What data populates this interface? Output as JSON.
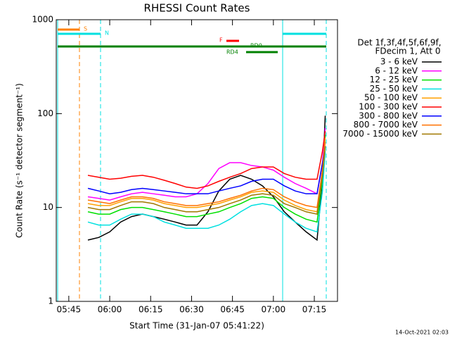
{
  "chart_data": {
    "type": "line",
    "title": "RHESSI Count Rates",
    "xlabel": "Start Time (31-Jan-07 05:41:22)",
    "ylabel": "Count Rate (s⁻¹ detector segment⁻¹)",
    "legend_title": [
      "Det 1f,3f,4f,5f,6f,9f,",
      "FDecim 1, Att 0"
    ],
    "footer": "14-Oct-2021 02:03",
    "annotations": [
      "S",
      "N",
      "F",
      "RD0",
      "RD4"
    ],
    "log_y": true,
    "xlim": [
      340.4,
      443.5
    ],
    "xticks": [
      {
        "value": 345,
        "label": "05:45"
      },
      {
        "value": 360,
        "label": "06:00"
      },
      {
        "value": 375,
        "label": "06:15"
      },
      {
        "value": 390,
        "label": "06:30"
      },
      {
        "value": 405,
        "label": "06:45"
      },
      {
        "value": 420,
        "label": "07:00"
      },
      {
        "value": 435,
        "label": "07:15"
      }
    ],
    "ylim": [
      1,
      1000
    ],
    "yticks": [
      1,
      10,
      100,
      1000
    ],
    "x": [
      352,
      356,
      360,
      364,
      368,
      372,
      376,
      380,
      384,
      388,
      392,
      396,
      400,
      404,
      408,
      412,
      416,
      420,
      424,
      428,
      432,
      436,
      438,
      439
    ],
    "series": [
      {
        "name": "3 - 6 keV",
        "color": "#000000",
        "values": [
          4.5,
          4.8,
          5.5,
          7,
          8,
          8.5,
          8,
          7.5,
          7,
          6.5,
          6.5,
          9,
          15,
          20,
          22,
          20,
          17,
          13,
          9,
          7,
          5.5,
          4.5,
          20,
          95
        ]
      },
      {
        "name": "6 - 12 keV",
        "color": "#ff00ff",
        "values": [
          13,
          12.5,
          12,
          13,
          14,
          14.5,
          14,
          13.5,
          13,
          13,
          14,
          18,
          26,
          30,
          30,
          28,
          27,
          25,
          21,
          18,
          16,
          14,
          30,
          70
        ]
      },
      {
        "name": "12 - 25 keV",
        "color": "#00e000",
        "values": [
          9,
          8.5,
          8.5,
          9.5,
          10,
          10,
          9.5,
          9,
          8.5,
          8,
          8,
          8.5,
          9,
          10,
          11,
          12.5,
          13,
          12.5,
          10,
          8.5,
          7.5,
          7,
          20,
          60
        ]
      },
      {
        "name": "25 - 50 keV",
        "color": "#00e0e0",
        "values": [
          7,
          6.5,
          6.5,
          7.5,
          8.5,
          8.5,
          8,
          7,
          6.5,
          6,
          6,
          6,
          6.5,
          7.5,
          9,
          10.5,
          11,
          10.5,
          8.5,
          7,
          6,
          5.5,
          15,
          40
        ]
      },
      {
        "name": "50 - 100 keV",
        "color": "#ffa000",
        "values": [
          11,
          10.5,
          10.5,
          11.5,
          12.5,
          12.5,
          12,
          11,
          10.5,
          10,
          10,
          10.5,
          11,
          12,
          13,
          14.5,
          15,
          14.5,
          12,
          10.5,
          9.5,
          9,
          25,
          55
        ]
      },
      {
        "name": "100 - 300 keV",
        "color": "#ff0000",
        "values": [
          22,
          21,
          20,
          20.5,
          21.5,
          22,
          21,
          19.5,
          18,
          16.5,
          16,
          17,
          19,
          21,
          23,
          26,
          27,
          27,
          23,
          21,
          20,
          20,
          40,
          65
        ]
      },
      {
        "name": "300 - 800 keV",
        "color": "#0000ff",
        "values": [
          16,
          15,
          14,
          14.5,
          15.5,
          16,
          15.5,
          15,
          14.5,
          14,
          14,
          14,
          15,
          16,
          17,
          19,
          20,
          20,
          17,
          15,
          14,
          14,
          30,
          45
        ]
      },
      {
        "name": "800 - 7000 keV",
        "color": "#ff7000",
        "values": [
          12,
          11.5,
          11,
          12,
          13,
          13,
          12.5,
          11.5,
          11,
          10.5,
          10.5,
          11,
          11.5,
          12.5,
          13.5,
          15,
          16,
          15.5,
          13,
          11.5,
          10.5,
          10,
          25,
          50
        ]
      },
      {
        "name": "7000 - 15000 keV",
        "color": "#a07800",
        "values": [
          10,
          9.5,
          9.5,
          10.5,
          11.5,
          11.5,
          11,
          10,
          9.5,
          9,
          9,
          9.5,
          10,
          11,
          12,
          13.5,
          14,
          13.5,
          11,
          10,
          9,
          8.5,
          22,
          45
        ]
      }
    ]
  }
}
